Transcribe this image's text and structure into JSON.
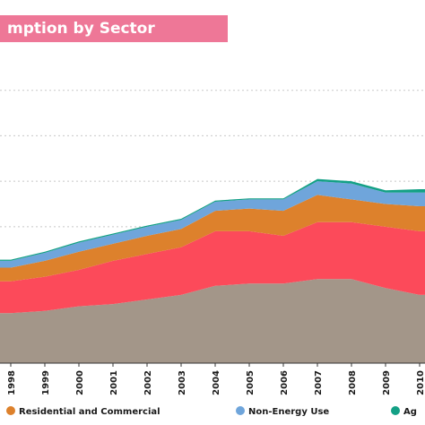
{
  "chart_data": {
    "type": "area",
    "stacked": true,
    "title": "mption by Sector",
    "x": [
      "1998",
      "1999",
      "2000",
      "2001",
      "2002",
      "2003",
      "2004",
      "2005",
      "2006",
      "2007",
      "2008",
      "2009",
      "2010"
    ],
    "series": [
      {
        "name": "",
        "color": "#a39689",
        "values": [
          22,
          23,
          25,
          26,
          28,
          30,
          34,
          35,
          35,
          37,
          37,
          33,
          30
        ]
      },
      {
        "name": "",
        "color": "#fc4a5a",
        "values": [
          14,
          15,
          16,
          19,
          20,
          21,
          24,
          23,
          21,
          25,
          25,
          27,
          28
        ]
      },
      {
        "name": "Residential and Commercial",
        "color": "#dd812c",
        "values": [
          6,
          7,
          8,
          7.5,
          8,
          8,
          9,
          10,
          11,
          12,
          10,
          10,
          11
        ]
      },
      {
        "name": "Non-Energy Use",
        "color": "#6fa5db",
        "values": [
          3,
          3.5,
          4,
          4,
          4,
          4,
          4,
          4,
          5,
          6,
          7,
          5,
          6
        ]
      },
      {
        "name": "Ag",
        "color": "#13a085",
        "values": [
          0.5,
          0.5,
          0.5,
          0.5,
          0.5,
          0.5,
          0.5,
          0.5,
          0.5,
          1,
          1,
          1,
          1.5
        ]
      }
    ],
    "yrange": [
      0,
      140
    ],
    "grid": true,
    "legend_position": "bottom"
  }
}
